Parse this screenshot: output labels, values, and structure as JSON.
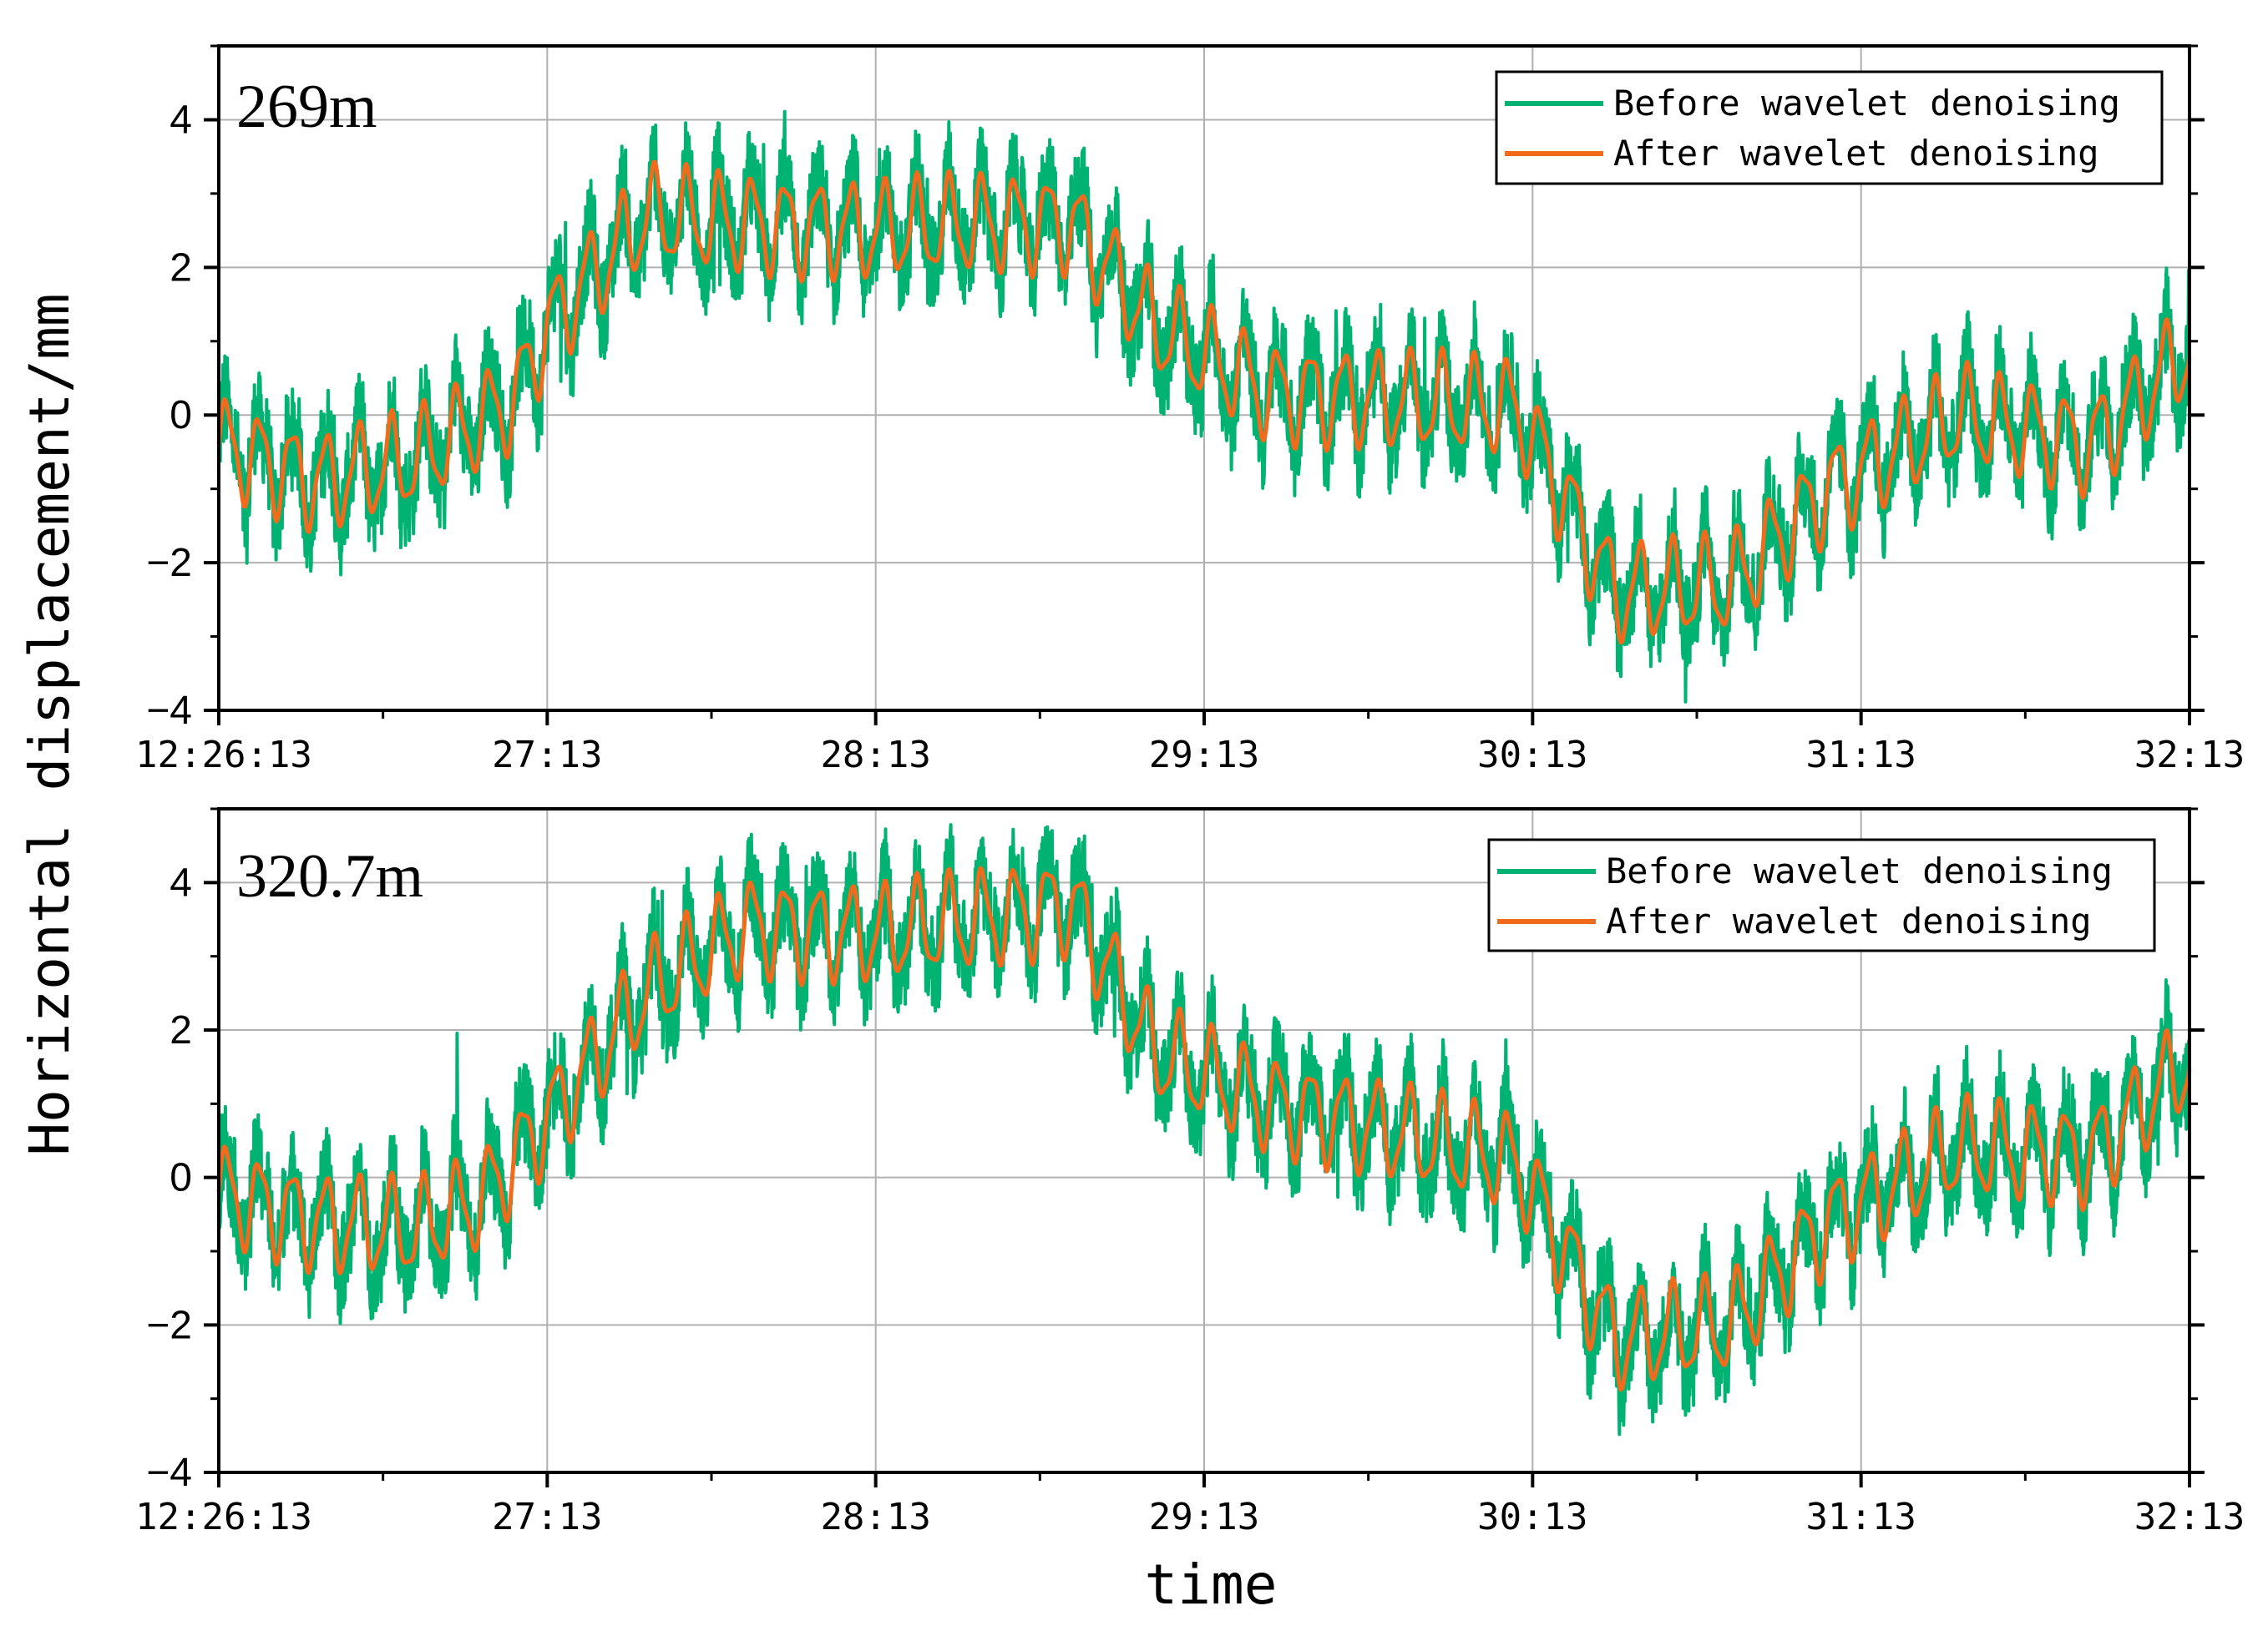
{
  "chart_data": [
    {
      "type": "line",
      "panel_label": "269m",
      "x_ticks": [
        "12:26:13",
        "27:13",
        "28:13",
        "29:13",
        "30:13",
        "31:13",
        "32:13"
      ],
      "x_range_minutes": [
        0,
        6
      ],
      "ylim": [
        -4,
        5
      ],
      "y_ticks": [
        4,
        2,
        0,
        -2,
        -4
      ],
      "y_tick_labels": [
        "4",
        "2",
        "0",
        "−2",
        "−4"
      ],
      "grid": true,
      "legend_position": "top-right",
      "series": [
        {
          "name": "Before wavelet denoising",
          "color": "#00b373",
          "trend_minutes": [
            0,
            0.3,
            0.6,
            0.9,
            1.0,
            1.3,
            1.6,
            2.0,
            2.3,
            2.6,
            2.85,
            3.2,
            3.6,
            3.95,
            4.25,
            4.6,
            4.9,
            5.3,
            5.7,
            6.0
          ],
          "trend_values": [
            -0.4,
            -0.9,
            -0.6,
            0.2,
            1.2,
            2.7,
            2.6,
            2.5,
            2.6,
            2.6,
            1.2,
            0.3,
            0.2,
            0.1,
            -2.4,
            -2.3,
            -1.0,
            0.0,
            -0.4,
            0.9
          ]
        },
        {
          "name": "After wavelet denoising",
          "color": "#f26b1d",
          "trend_minutes": [
            0,
            0.3,
            0.6,
            0.9,
            1.0,
            1.3,
            1.6,
            2.0,
            2.3,
            2.6,
            2.85,
            3.2,
            3.6,
            3.95,
            4.25,
            4.6,
            4.9,
            5.3,
            5.7,
            6.0
          ],
          "trend_values": [
            -0.4,
            -0.9,
            -0.6,
            0.2,
            1.2,
            2.7,
            2.6,
            2.5,
            2.6,
            2.6,
            1.2,
            0.3,
            0.2,
            0.1,
            -2.4,
            -2.3,
            -1.0,
            0.0,
            -0.4,
            0.9
          ]
        }
      ]
    },
    {
      "type": "line",
      "panel_label": "320.7m",
      "x_ticks": [
        "12:26:13",
        "27:13",
        "28:13",
        "29:13",
        "30:13",
        "31:13",
        "32:13"
      ],
      "x_range_minutes": [
        0,
        6
      ],
      "ylim": [
        -4,
        5
      ],
      "y_ticks": [
        4,
        2,
        0,
        -2,
        -4
      ],
      "y_tick_labels": [
        "4",
        "2",
        "0",
        "−2",
        "−4"
      ],
      "grid": true,
      "legend_position": "top-right",
      "series": [
        {
          "name": "Before wavelet denoising",
          "color": "#00b373",
          "trend_minutes": [
            0,
            0.3,
            0.6,
            0.8,
            1.0,
            1.3,
            1.6,
            2.0,
            2.3,
            2.6,
            2.85,
            3.2,
            3.6,
            3.95,
            4.25,
            4.6,
            4.9,
            5.3,
            5.7,
            6.0
          ],
          "trend_values": [
            -0.2,
            -0.6,
            -0.7,
            -0.3,
            0.8,
            2.5,
            3.4,
            3.3,
            3.5,
            3.7,
            1.7,
            1.0,
            0.6,
            0.2,
            -2.2,
            -2.0,
            -0.6,
            0.4,
            0.3,
            1.6
          ]
        },
        {
          "name": "After wavelet denoising",
          "color": "#f26b1d",
          "trend_minutes": [
            0,
            0.3,
            0.6,
            0.8,
            1.0,
            1.3,
            1.6,
            2.0,
            2.3,
            2.6,
            2.85,
            3.2,
            3.6,
            3.95,
            4.25,
            4.6,
            4.9,
            5.3,
            5.7,
            6.0
          ],
          "trend_values": [
            -0.2,
            -0.6,
            -0.7,
            -0.3,
            0.8,
            2.5,
            3.4,
            3.3,
            3.5,
            3.7,
            1.7,
            1.0,
            0.6,
            0.2,
            -2.2,
            -2.0,
            -0.6,
            0.4,
            0.3,
            1.6
          ]
        }
      ]
    }
  ],
  "ylabel": "Horizontal displacement/mm",
  "xlabel": "time",
  "oscillation": {
    "period_minutes": 0.1,
    "amplitude_mm": 0.6,
    "noise_amplitude_mm": 0.7
  }
}
